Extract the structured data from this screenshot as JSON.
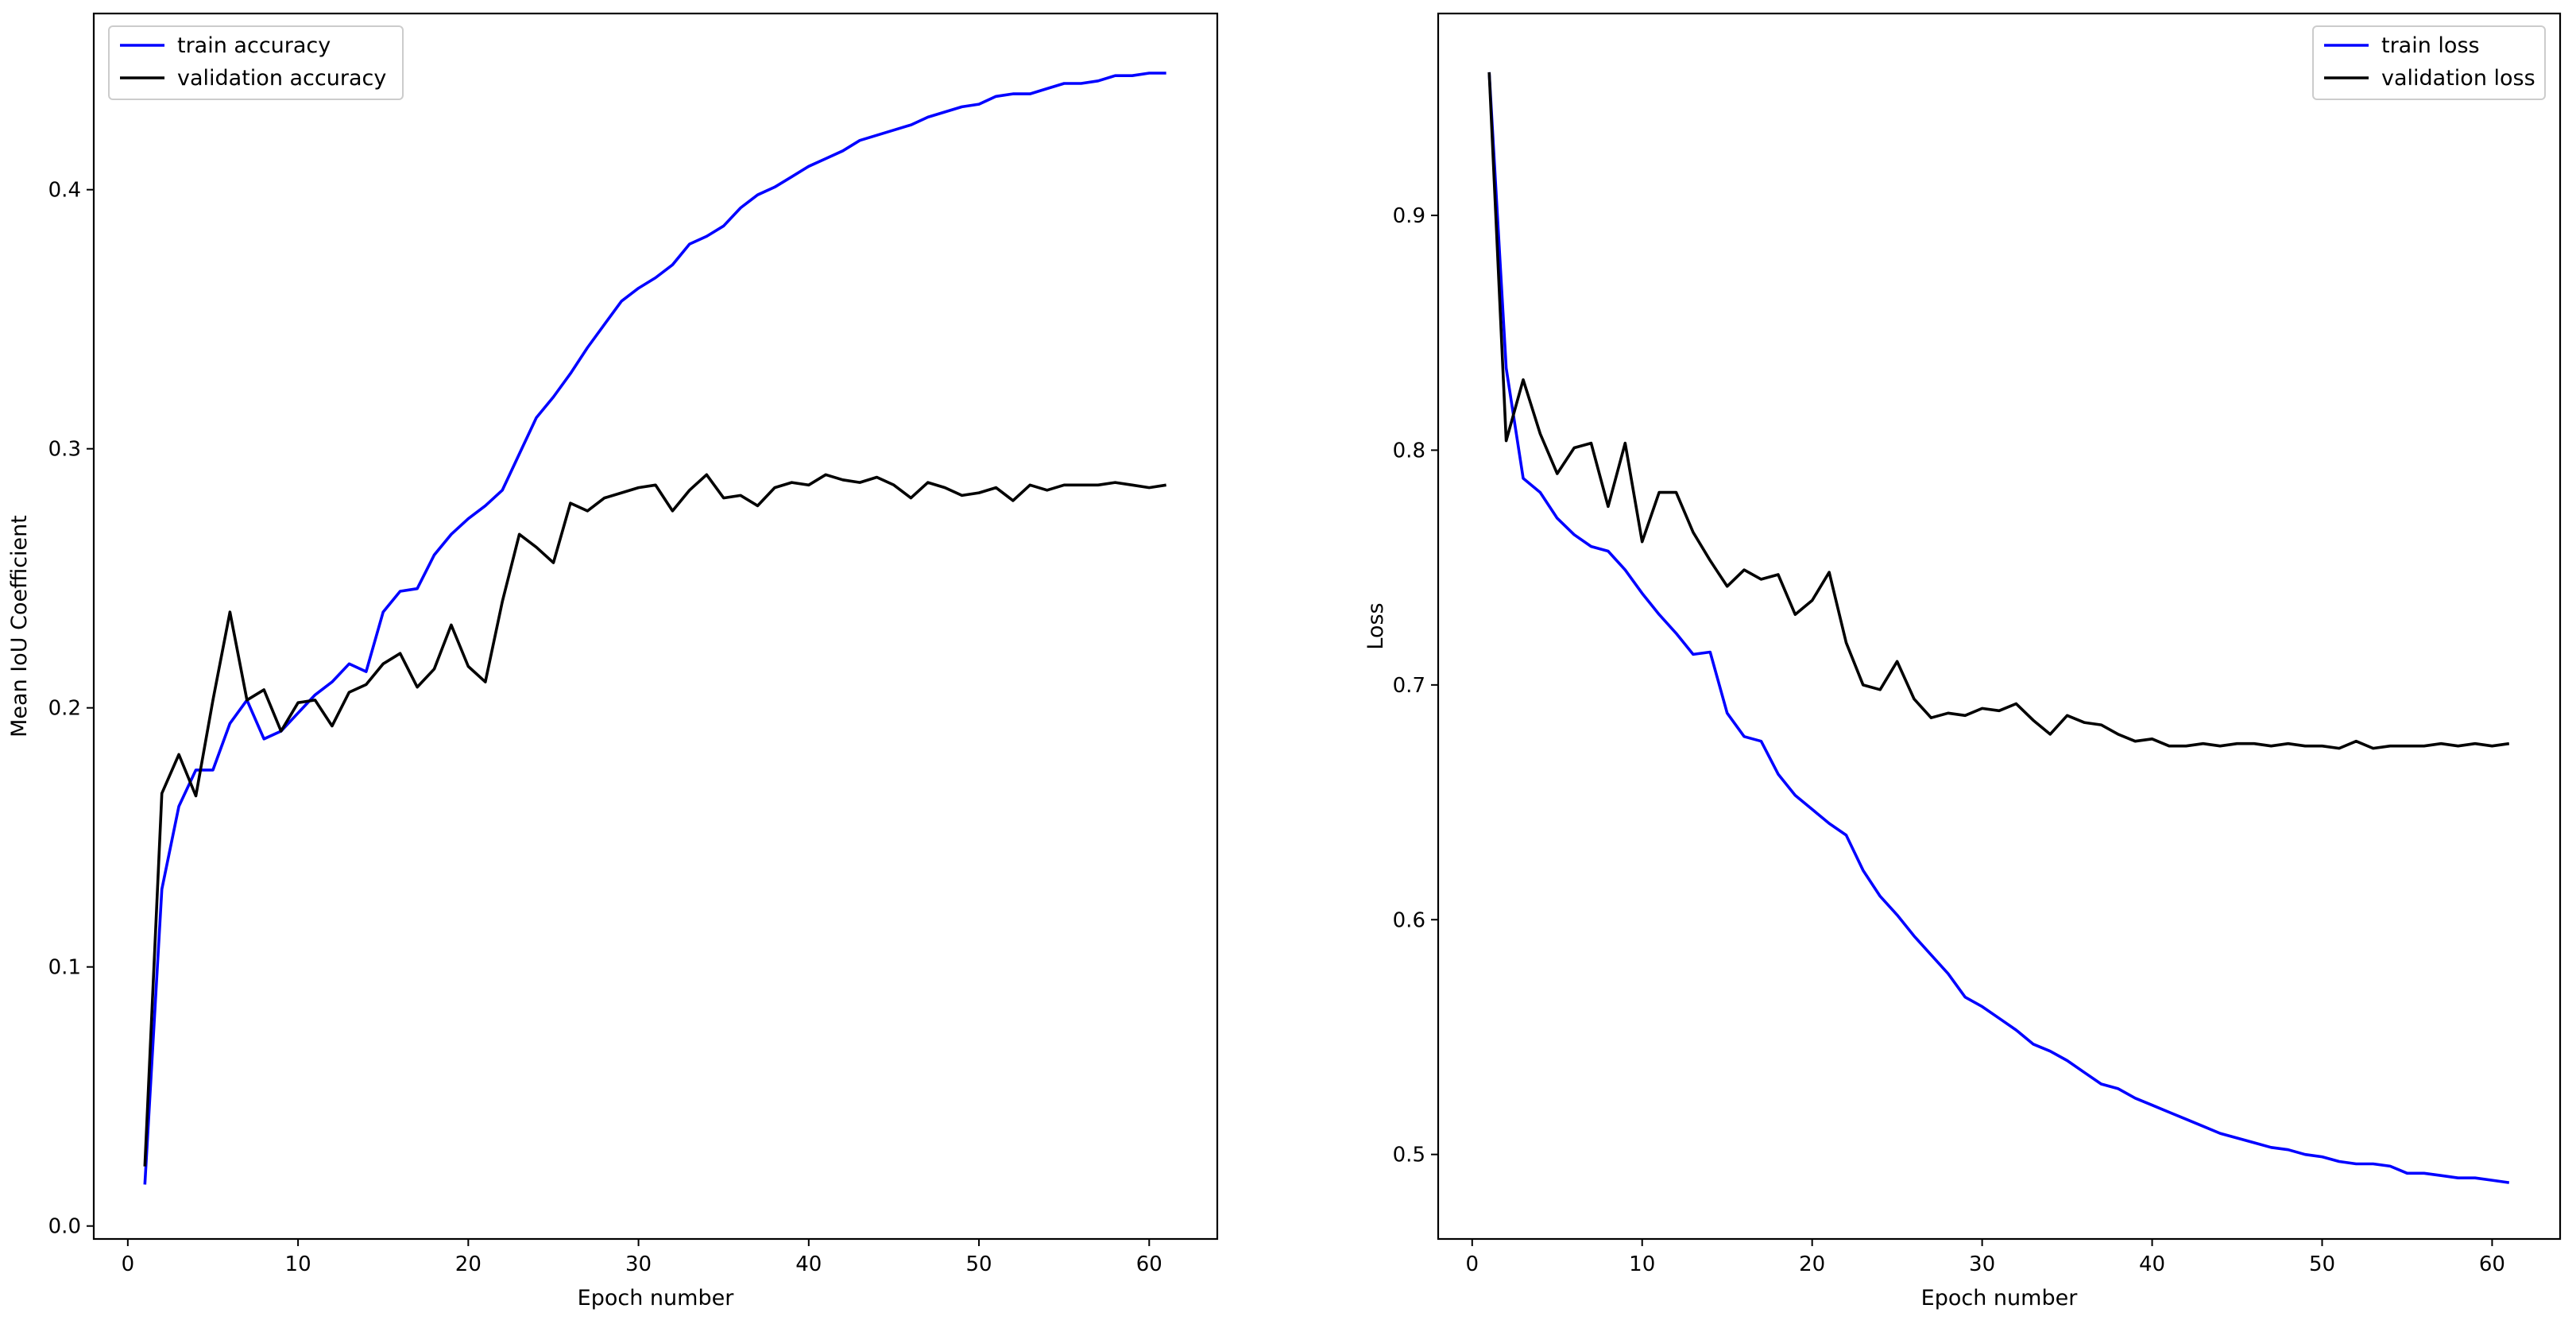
{
  "chart_data": [
    {
      "type": "line",
      "title": "",
      "xlabel": "Epoch number",
      "ylabel": "Mean IoU Coefficient",
      "xlim": [
        -2,
        64
      ],
      "ylim": [
        -0.005,
        0.468
      ],
      "xticks": [
        0,
        10,
        20,
        30,
        40,
        50,
        60
      ],
      "yticks": [
        0.0,
        0.1,
        0.2,
        0.3,
        0.4
      ],
      "ytick_labels": [
        "0.0",
        "0.1",
        "0.2",
        "0.3",
        "0.4"
      ],
      "grid": false,
      "legend_position": "top-left",
      "x_start": 1,
      "series": [
        {
          "name": "train accuracy",
          "color": "#0000ff",
          "values": [
            0.016,
            0.13,
            0.162,
            0.176,
            0.176,
            0.194,
            0.203,
            0.188,
            0.191,
            0.198,
            0.205,
            0.21,
            0.217,
            0.214,
            0.237,
            0.245,
            0.246,
            0.259,
            0.267,
            0.273,
            0.278,
            0.284,
            0.298,
            0.312,
            0.32,
            0.329,
            0.339,
            0.348,
            0.357,
            0.362,
            0.366,
            0.371,
            0.379,
            0.382,
            0.386,
            0.393,
            0.398,
            0.401,
            0.405,
            0.409,
            0.412,
            0.415,
            0.419,
            0.421,
            0.423,
            0.425,
            0.428,
            0.43,
            0.432,
            0.433,
            0.436,
            0.437,
            0.437,
            0.439,
            0.441,
            0.441,
            0.442,
            0.444,
            0.444,
            0.445,
            0.445
          ]
        },
        {
          "name": "validation accuracy",
          "color": "#000000",
          "values": [
            0.023,
            0.167,
            0.182,
            0.166,
            0.203,
            0.237,
            0.203,
            0.207,
            0.191,
            0.202,
            0.203,
            0.193,
            0.206,
            0.209,
            0.217,
            0.221,
            0.208,
            0.215,
            0.232,
            0.216,
            0.21,
            0.241,
            0.267,
            0.262,
            0.256,
            0.279,
            0.276,
            0.281,
            0.283,
            0.285,
            0.286,
            0.276,
            0.284,
            0.29,
            0.281,
            0.282,
            0.278,
            0.285,
            0.287,
            0.286,
            0.29,
            0.288,
            0.287,
            0.289,
            0.286,
            0.281,
            0.287,
            0.285,
            0.282,
            0.283,
            0.285,
            0.28,
            0.286,
            0.284,
            0.286,
            0.286,
            0.286,
            0.287,
            0.286,
            0.285,
            0.286
          ]
        }
      ]
    },
    {
      "type": "line",
      "title": "",
      "xlabel": "Epoch number",
      "ylabel": "Loss",
      "xlim": [
        -2,
        64
      ],
      "ylim": [
        0.464,
        0.986
      ],
      "xticks": [
        0,
        10,
        20,
        30,
        40,
        50,
        60
      ],
      "yticks": [
        0.5,
        0.6,
        0.7,
        0.8,
        0.9
      ],
      "ytick_labels": [
        "0.5",
        "0.6",
        "0.7",
        "0.8",
        "0.9"
      ],
      "grid": false,
      "legend_position": "top-right",
      "x_start": 1,
      "series": [
        {
          "name": "train loss",
          "color": "#0000ff",
          "values": [
            0.961,
            0.835,
            0.788,
            0.782,
            0.771,
            0.764,
            0.759,
            0.757,
            0.749,
            0.739,
            0.73,
            0.722,
            0.713,
            0.714,
            0.688,
            0.678,
            0.676,
            0.662,
            0.653,
            0.647,
            0.641,
            0.636,
            0.621,
            0.61,
            0.602,
            0.593,
            0.585,
            0.577,
            0.567,
            0.563,
            0.558,
            0.553,
            0.547,
            0.544,
            0.54,
            0.535,
            0.53,
            0.528,
            0.524,
            0.521,
            0.518,
            0.515,
            0.512,
            0.509,
            0.507,
            0.505,
            0.503,
            0.502,
            0.5,
            0.499,
            0.497,
            0.496,
            0.496,
            0.495,
            0.492,
            0.492,
            0.491,
            0.49,
            0.49,
            0.489,
            0.488
          ]
        },
        {
          "name": "validation loss",
          "color": "#000000",
          "values": [
            0.961,
            0.804,
            0.83,
            0.807,
            0.79,
            0.801,
            0.803,
            0.776,
            0.803,
            0.761,
            0.782,
            0.782,
            0.765,
            0.753,
            0.742,
            0.749,
            0.745,
            0.747,
            0.73,
            0.736,
            0.748,
            0.718,
            0.7,
            0.698,
            0.71,
            0.694,
            0.686,
            0.688,
            0.687,
            0.69,
            0.689,
            0.692,
            0.685,
            0.679,
            0.687,
            0.684,
            0.683,
            0.679,
            0.676,
            0.677,
            0.674,
            0.674,
            0.675,
            0.674,
            0.675,
            0.675,
            0.674,
            0.675,
            0.674,
            0.674,
            0.673,
            0.676,
            0.673,
            0.674,
            0.674,
            0.674,
            0.675,
            0.674,
            0.675,
            0.674,
            0.675
          ]
        }
      ]
    }
  ]
}
